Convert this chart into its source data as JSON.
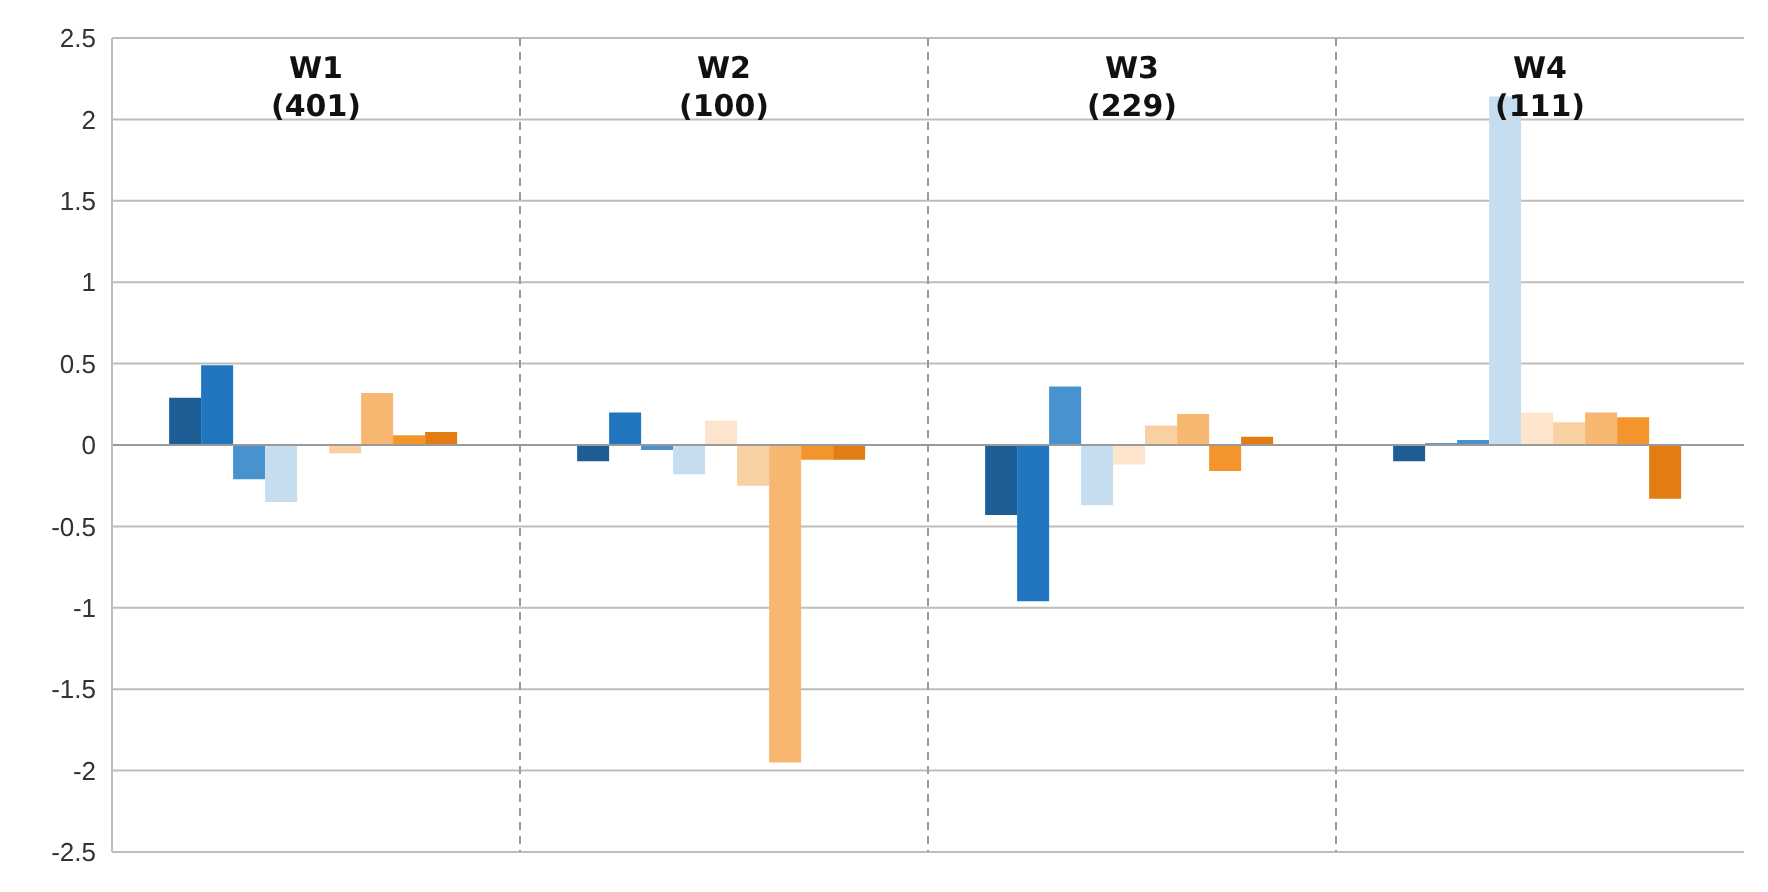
{
  "chart_data": {
    "type": "bar",
    "categories": [
      "W1 (401)",
      "W2 (100)",
      "W3 (229)",
      "W4 (111)"
    ],
    "series": [
      {
        "color": "#1d5e96",
        "values": [
          0.29,
          -0.1,
          -0.43,
          -0.1
        ]
      },
      {
        "color": "#1f76be",
        "values": [
          0.49,
          0.2,
          -0.96,
          0.01
        ]
      },
      {
        "color": "#4893cf",
        "values": [
          -0.21,
          -0.03,
          0.36,
          0.03
        ]
      },
      {
        "color": "#c6ddf0",
        "values": [
          -0.35,
          -0.18,
          -0.37,
          2.14
        ]
      },
      {
        "color": "#fce5cc",
        "values": [
          0,
          0.15,
          -0.12,
          0.2
        ]
      },
      {
        "color": "#f9d0a2",
        "values": [
          -0.05,
          -0.25,
          0.12,
          0.14
        ]
      },
      {
        "color": "#f8b771",
        "values": [
          0.32,
          -1.95,
          0.19,
          0.2
        ]
      },
      {
        "color": "#f3942c",
        "values": [
          0.06,
          -0.09,
          -0.16,
          0.17
        ]
      },
      {
        "color": "#e17d13",
        "values": [
          0.08,
          -0.09,
          0.05,
          -0.33
        ]
      }
    ],
    "ylim": [
      -2.5,
      2.5
    ],
    "yticks": [
      -2.5,
      -2,
      -1.5,
      -1,
      -0.5,
      0,
      0.5,
      1,
      1.5,
      2,
      2.5
    ],
    "grid": "y",
    "legend": false
  }
}
